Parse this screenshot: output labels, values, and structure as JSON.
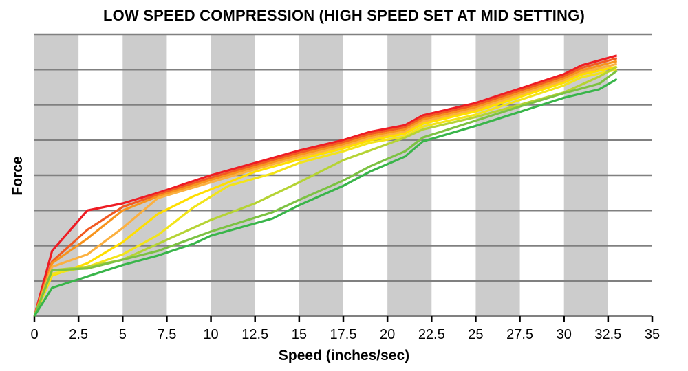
{
  "chart_data": {
    "type": "line",
    "title": "LOW SPEED COMPRESSION (HIGH SPEED SET AT MID SETTING)",
    "xlabel": "Speed (inches/sec)",
    "ylabel": "Force",
    "xlim": [
      0,
      35
    ],
    "ylim": [
      0,
      8
    ],
    "x_ticks": [
      "0",
      "2.5",
      "5",
      "7.5",
      "10",
      "12.5",
      "15",
      "17.5",
      "20",
      "22.5",
      "25",
      "27.5",
      "30",
      "32.5",
      "35"
    ],
    "y_ticks_labeled": false,
    "grid": "horizontal lines, alternating gray vertical bands",
    "legend": "none",
    "colors": {
      "band": "#cccccc",
      "grid": "#808080"
    },
    "series": [
      {
        "color": "#ee1c24",
        "points": [
          [
            0,
            0
          ],
          [
            1,
            1.85
          ],
          [
            3,
            3.0
          ],
          [
            5,
            3.2
          ],
          [
            7,
            3.5
          ],
          [
            10,
            4.0
          ],
          [
            12.5,
            4.35
          ],
          [
            15,
            4.7
          ],
          [
            17.5,
            5.0
          ],
          [
            19,
            5.23
          ],
          [
            21,
            5.42
          ],
          [
            22,
            5.7
          ],
          [
            25,
            6.05
          ],
          [
            30,
            6.87
          ],
          [
            31,
            7.12
          ],
          [
            33,
            7.4
          ]
        ]
      },
      {
        "color": "#f15a22",
        "points": [
          [
            0,
            0
          ],
          [
            1,
            1.55
          ],
          [
            3,
            2.45
          ],
          [
            5,
            3.1
          ],
          [
            7,
            3.45
          ],
          [
            10,
            3.93
          ],
          [
            12.5,
            4.29
          ],
          [
            15,
            4.64
          ],
          [
            17.5,
            4.94
          ],
          [
            19,
            5.17
          ],
          [
            21,
            5.36
          ],
          [
            22,
            5.64
          ],
          [
            25,
            5.99
          ],
          [
            30,
            6.81
          ],
          [
            31,
            7.05
          ],
          [
            33,
            7.32
          ]
        ]
      },
      {
        "color": "#f7941d",
        "points": [
          [
            0,
            0
          ],
          [
            1,
            1.5
          ],
          [
            3,
            2.2
          ],
          [
            5,
            3.0
          ],
          [
            7,
            3.4
          ],
          [
            10,
            3.87
          ],
          [
            12.5,
            4.23
          ],
          [
            15,
            4.58
          ],
          [
            17.5,
            4.88
          ],
          [
            19,
            5.11
          ],
          [
            21,
            5.3
          ],
          [
            22,
            5.58
          ],
          [
            25,
            5.93
          ],
          [
            30,
            6.75
          ],
          [
            31,
            6.98
          ],
          [
            33,
            7.24
          ]
        ]
      },
      {
        "color": "#fbb040",
        "points": [
          [
            0,
            0
          ],
          [
            1,
            1.4
          ],
          [
            3,
            1.75
          ],
          [
            5,
            2.5
          ],
          [
            7,
            3.35
          ],
          [
            10,
            3.8
          ],
          [
            12.5,
            4.17
          ],
          [
            15,
            4.52
          ],
          [
            17.5,
            4.82
          ],
          [
            19,
            5.05
          ],
          [
            21,
            5.24
          ],
          [
            22,
            5.52
          ],
          [
            25,
            5.87
          ],
          [
            30,
            6.69
          ],
          [
            31,
            6.92
          ],
          [
            33,
            7.16
          ]
        ]
      },
      {
        "color": "#ffde00",
        "points": [
          [
            0,
            0
          ],
          [
            1,
            1.15
          ],
          [
            3,
            1.5
          ],
          [
            5,
            2.1
          ],
          [
            7,
            2.9
          ],
          [
            9,
            3.4
          ],
          [
            11,
            3.8
          ],
          [
            12.5,
            4.1
          ],
          [
            15,
            4.45
          ],
          [
            17.5,
            4.76
          ],
          [
            19,
            4.99
          ],
          [
            21,
            5.18
          ],
          [
            22,
            5.46
          ],
          [
            25,
            5.81
          ],
          [
            30,
            6.63
          ],
          [
            31,
            6.86
          ],
          [
            33,
            7.08
          ]
        ]
      },
      {
        "color": "#f2e41a",
        "points": [
          [
            0,
            0
          ],
          [
            1,
            1.2
          ],
          [
            3,
            1.4
          ],
          [
            5,
            1.75
          ],
          [
            7,
            2.3
          ],
          [
            9,
            3.08
          ],
          [
            11,
            3.7
          ],
          [
            13.5,
            4.05
          ],
          [
            15,
            4.35
          ],
          [
            17.5,
            4.68
          ],
          [
            19,
            4.92
          ],
          [
            21,
            5.1
          ],
          [
            22,
            5.38
          ],
          [
            25,
            5.72
          ],
          [
            30,
            6.55
          ],
          [
            31,
            6.78
          ],
          [
            33,
            7.0
          ]
        ]
      },
      {
        "color": "#b5d334",
        "points": [
          [
            0,
            0
          ],
          [
            1,
            1.3
          ],
          [
            3,
            1.4
          ],
          [
            5,
            1.6
          ],
          [
            7,
            2.05
          ],
          [
            10,
            2.73
          ],
          [
            12.5,
            3.2
          ],
          [
            15,
            3.8
          ],
          [
            17.5,
            4.43
          ],
          [
            19,
            4.7
          ],
          [
            21,
            5.07
          ],
          [
            22,
            5.3
          ],
          [
            25,
            5.65
          ],
          [
            30,
            6.35
          ],
          [
            32,
            6.8
          ],
          [
            33,
            7.08
          ]
        ]
      },
      {
        "color": "#7cc242",
        "points": [
          [
            0,
            0
          ],
          [
            1,
            1.3
          ],
          [
            3,
            1.35
          ],
          [
            5,
            1.6
          ],
          [
            7,
            1.85
          ],
          [
            10,
            2.4
          ],
          [
            13.5,
            2.95
          ],
          [
            15,
            3.3
          ],
          [
            17.5,
            3.85
          ],
          [
            19,
            4.25
          ],
          [
            21,
            4.68
          ],
          [
            22,
            5.07
          ],
          [
            25,
            5.55
          ],
          [
            27.5,
            5.95
          ],
          [
            30,
            6.33
          ],
          [
            32,
            6.6
          ],
          [
            33,
            6.97
          ]
        ]
      },
      {
        "color": "#39b54a",
        "points": [
          [
            0,
            0
          ],
          [
            1,
            0.8
          ],
          [
            5,
            1.45
          ],
          [
            7,
            1.72
          ],
          [
            9,
            2.05
          ],
          [
            10,
            2.28
          ],
          [
            13.5,
            2.77
          ],
          [
            15,
            3.15
          ],
          [
            17.5,
            3.7
          ],
          [
            19,
            4.1
          ],
          [
            21,
            4.53
          ],
          [
            22,
            4.96
          ],
          [
            25,
            5.4
          ],
          [
            27.5,
            5.8
          ],
          [
            30,
            6.2
          ],
          [
            32,
            6.44
          ],
          [
            33,
            6.73
          ]
        ]
      }
    ]
  }
}
